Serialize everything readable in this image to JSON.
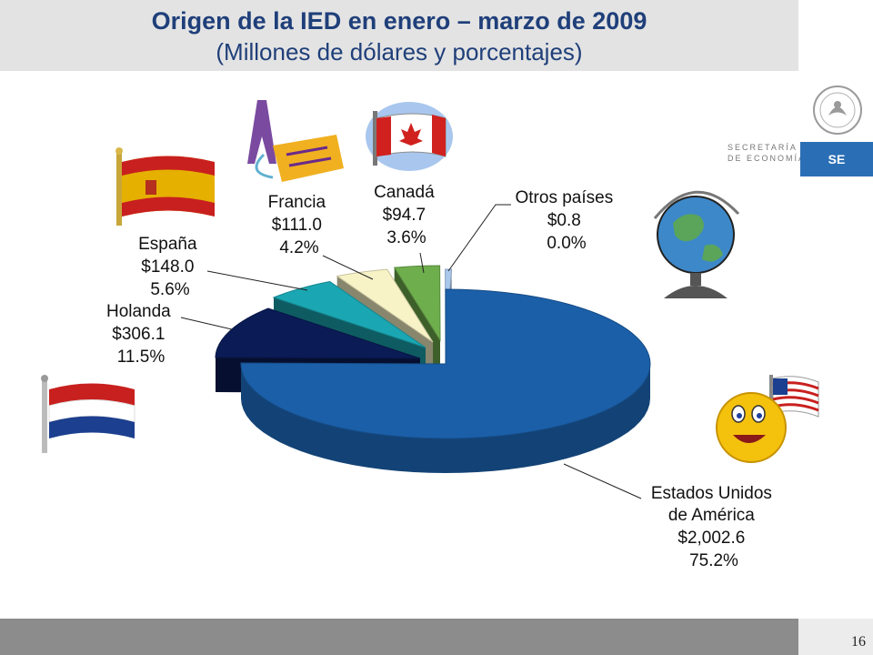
{
  "title": {
    "line1": "Origen de la IED en enero – marzo de 2009",
    "line2": "(Millones de dólares y porcentajes)"
  },
  "branding": {
    "department_line1": "SECRETARÍA",
    "department_line2": "DE ECONOMÍA",
    "badge": "SE"
  },
  "page_number": "16",
  "chart_data": {
    "type": "pie",
    "title": "Origen de la IED en enero – marzo de 2009",
    "subtitle": "(Millones de dólares y porcentajes)",
    "units": "Millones de dólares",
    "slices": [
      {
        "name": "Estados Unidos de América",
        "name_lines": [
          "Estados Unidos",
          "de América"
        ],
        "value_label": "$2,002.6",
        "value": 2002.6,
        "percent": 75.2,
        "percent_label": "75.2%",
        "color": "#1b5fa8"
      },
      {
        "name": "Holanda",
        "name_lines": [
          "Holanda"
        ],
        "value_label": "$306.1",
        "value": 306.1,
        "percent": 11.5,
        "percent_label": "11.5%",
        "color": "#0a1b55"
      },
      {
        "name": "España",
        "name_lines": [
          "España"
        ],
        "value_label": "$148.0",
        "value": 148.0,
        "percent": 5.6,
        "percent_label": "5.6%",
        "color": "#1aa7b3"
      },
      {
        "name": "Francia",
        "name_lines": [
          "Francia"
        ],
        "value_label": "$111.0",
        "value": 111.0,
        "percent": 4.2,
        "percent_label": "4.2%",
        "color": "#f7f3c6"
      },
      {
        "name": "Canadá",
        "name_lines": [
          "Canadá"
        ],
        "value_label": "$94.7",
        "value": 94.7,
        "percent": 3.6,
        "percent_label": "3.6%",
        "color": "#6fae4d"
      },
      {
        "name": "Otros países",
        "name_lines": [
          "Otros países"
        ],
        "value_label": "$0.8",
        "value": 0.8,
        "percent": 0.0,
        "percent_label": "0.0%",
        "color": "#aac8ec"
      }
    ],
    "legend": "none"
  }
}
